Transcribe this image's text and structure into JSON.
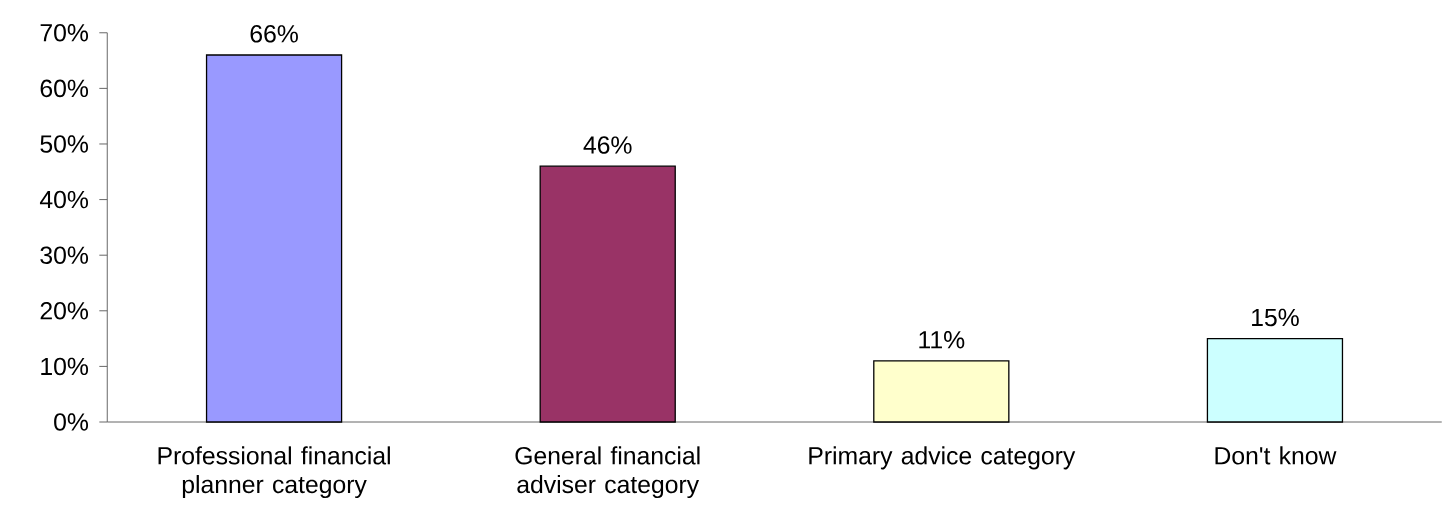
{
  "chart_data": {
    "type": "bar",
    "categories": [
      "Professional financial planner category",
      "General financial adviser category",
      "Primary advice category",
      "Don't know"
    ],
    "values": [
      66,
      46,
      11,
      15
    ],
    "colors": [
      "#9999ff",
      "#993366",
      "#ffffcc",
      "#ccffff"
    ],
    "value_labels": [
      "66%",
      "46%",
      "11%",
      "15%"
    ],
    "ylim": [
      0,
      70
    ],
    "yticks": [
      {
        "value": 0,
        "label": "0%"
      },
      {
        "value": 10,
        "label": "10%"
      },
      {
        "value": 20,
        "label": "20%"
      },
      {
        "value": 30,
        "label": "30%"
      },
      {
        "value": 40,
        "label": "40%"
      },
      {
        "value": 50,
        "label": "50%"
      },
      {
        "value": 60,
        "label": "60%"
      },
      {
        "value": 70,
        "label": "70%"
      }
    ],
    "grid": false
  }
}
